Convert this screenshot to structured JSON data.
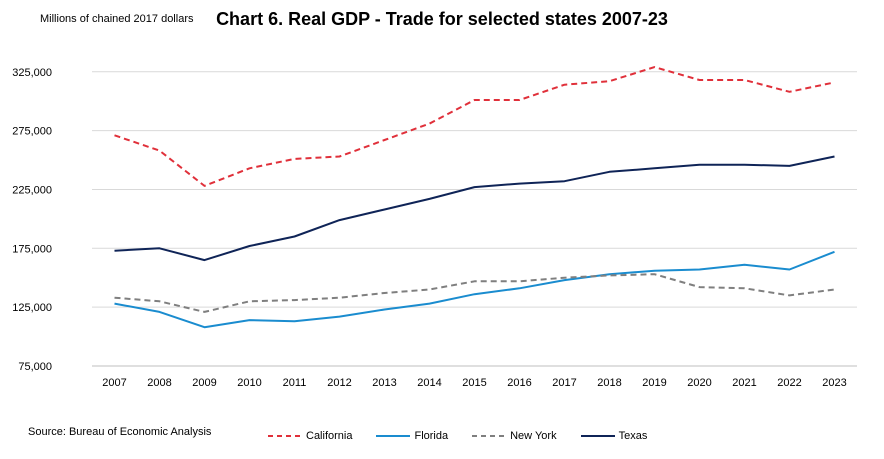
{
  "chart_data": {
    "type": "line",
    "title": "Chart 6. Real GDP - Trade for selected states 2007-23",
    "ylabel": "Millions of chained 2017 dollars",
    "xlabel": "",
    "source": "Source: Bureau of Economic Analysis",
    "categories": [
      "2007",
      "2008",
      "2009",
      "2010",
      "2011",
      "2012",
      "2013",
      "2014",
      "2015",
      "2016",
      "2017",
      "2018",
      "2019",
      "2020",
      "2021",
      "2022",
      "2023"
    ],
    "ylim": [
      75000,
      335000
    ],
    "yticks": [
      75000,
      125000,
      175000,
      225000,
      275000,
      325000
    ],
    "ytick_labels": [
      "75,000",
      "125,000",
      "175,000",
      "225,000",
      "275,000",
      "325,000"
    ],
    "grid": true,
    "legend_position": "bottom",
    "series": [
      {
        "name": "California",
        "color": "#e0303a",
        "dash": "dashed",
        "values": [
          271000,
          258000,
          228000,
          243000,
          251000,
          253000,
          267000,
          281000,
          301000,
          301000,
          314000,
          317000,
          329000,
          318000,
          318000,
          308000,
          316000
        ]
      },
      {
        "name": "Florida",
        "color": "#1a8ccf",
        "dash": "solid",
        "values": [
          128000,
          121000,
          108000,
          114000,
          113000,
          117000,
          123000,
          128000,
          136000,
          141000,
          148000,
          153000,
          156000,
          157000,
          161000,
          157000,
          172000
        ]
      },
      {
        "name": "New York",
        "color": "#7f7f7f",
        "dash": "dashed",
        "values": [
          133000,
          130000,
          121000,
          130000,
          131000,
          133000,
          137000,
          140000,
          147000,
          147000,
          150000,
          152000,
          153000,
          142000,
          141000,
          135000,
          140000
        ]
      },
      {
        "name": "Texas",
        "color": "#0f2457",
        "dash": "solid",
        "values": [
          173000,
          175000,
          165000,
          177000,
          185000,
          199000,
          208000,
          217000,
          227000,
          230000,
          232000,
          240000,
          243000,
          246000,
          246000,
          245000,
          253000
        ]
      }
    ]
  }
}
